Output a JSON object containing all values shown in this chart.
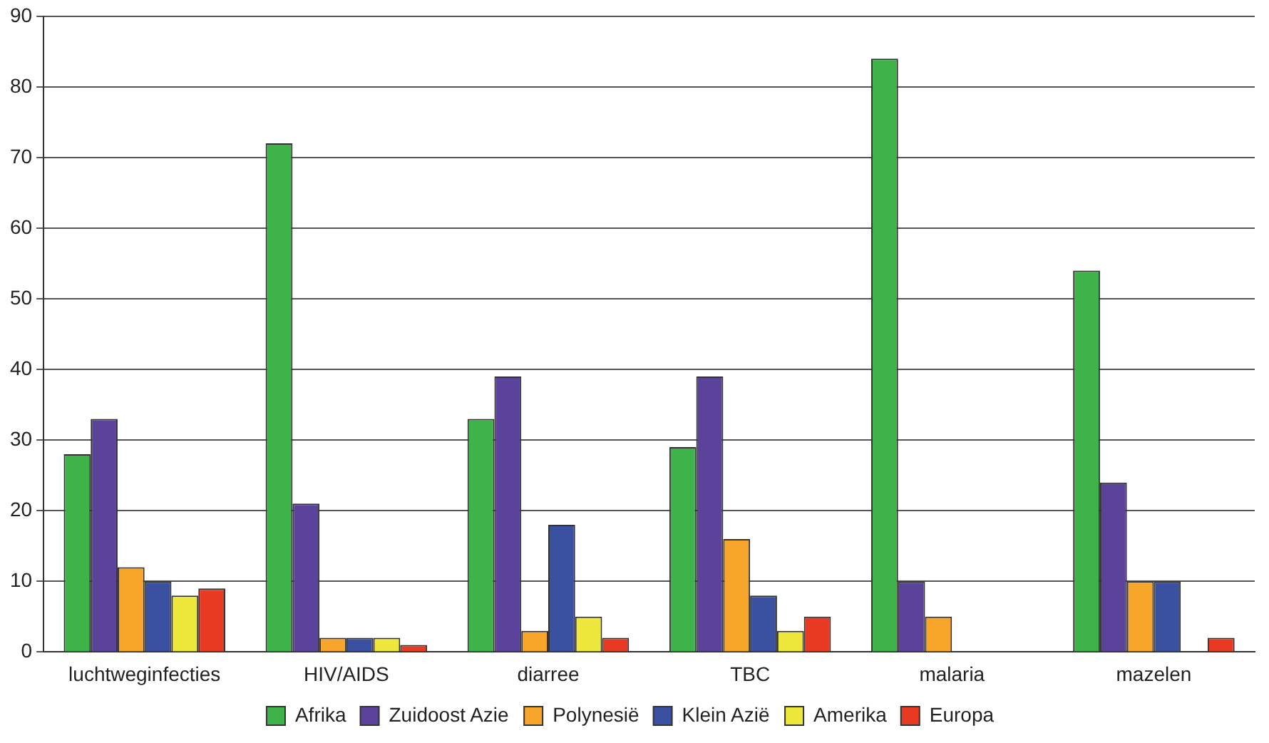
{
  "chart_data": {
    "type": "bar",
    "categories": [
      "luchtweginfecties",
      "HIV/AIDS",
      "diarree",
      "TBC",
      "malaria",
      "mazelen"
    ],
    "series": [
      {
        "name": "Afrika",
        "color": "#3db34a",
        "values": [
          28,
          72,
          33,
          29,
          84,
          54
        ]
      },
      {
        "name": "Zuidoost Azie",
        "color": "#5b439b",
        "values": [
          33,
          21,
          39,
          39,
          10,
          24
        ]
      },
      {
        "name": "Polynesië",
        "color": "#f7a52b",
        "values": [
          12,
          2,
          3,
          16,
          5,
          10
        ]
      },
      {
        "name": "Klein Azië",
        "color": "#3a50a0",
        "values": [
          10,
          2,
          18,
          8,
          null,
          10
        ]
      },
      {
        "name": "Amerika",
        "color": "#eee83c",
        "values": [
          8,
          2,
          5,
          3,
          null,
          null
        ]
      },
      {
        "name": "Europa",
        "color": "#e93a24",
        "values": [
          9,
          1,
          2,
          5,
          null,
          2
        ]
      }
    ],
    "ylim": [
      0,
      90
    ],
    "yticks": [
      0,
      10,
      20,
      30,
      40,
      50,
      60,
      70,
      80,
      90
    ],
    "grid": "y",
    "legend": "bottom"
  }
}
